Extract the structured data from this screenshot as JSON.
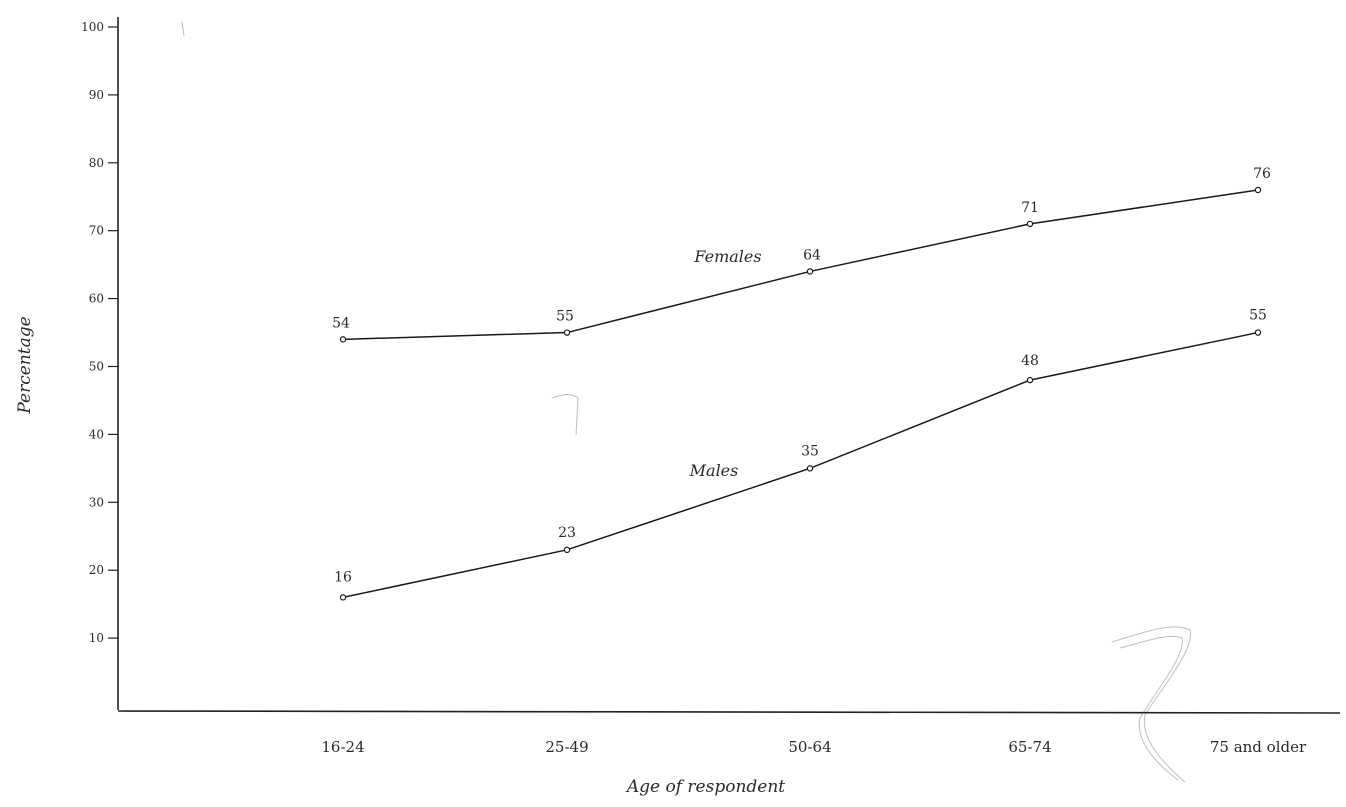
{
  "chart_data": {
    "type": "line",
    "title": "",
    "xlabel": "Age of respondent",
    "ylabel": "Percentage",
    "ylim": [
      0,
      100
    ],
    "yticks": [
      "10",
      "20",
      "30",
      "40",
      "50",
      "60",
      "70",
      "80",
      "90",
      "100"
    ],
    "categories": [
      "16-24",
      "25-49",
      "50-64",
      "65-74",
      "75 and older"
    ],
    "grid": false,
    "legend": "none",
    "series": [
      {
        "name": "Females",
        "values": [
          54,
          55,
          64,
          71,
          76
        ]
      },
      {
        "name": "Males",
        "values": [
          16,
          23,
          35,
          48,
          55
        ]
      }
    ]
  }
}
